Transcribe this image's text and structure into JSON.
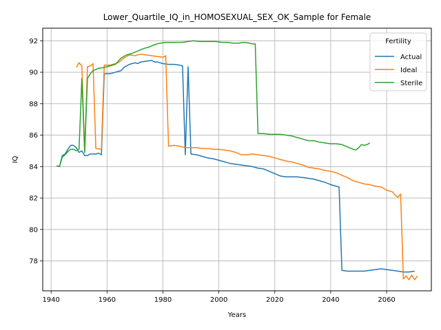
{
  "chart_data": {
    "type": "line",
    "title": "Lower_Quartile_IQ_in_HOMOSEXUAL_SEX_OK_Sample for Female",
    "xlabel": "Years",
    "ylabel": "IQ",
    "xlim": [
      1937,
      2076
    ],
    "ylim": [
      76.1,
      92.8
    ],
    "xticks": [
      1940,
      1960,
      1980,
      2000,
      2020,
      2040,
      2060
    ],
    "yticks": [
      78,
      80,
      82,
      84,
      86,
      88,
      90,
      92
    ],
    "grid": true,
    "legend": {
      "title": "Fertility",
      "placement": "top-right"
    },
    "series": [
      {
        "name": "Actual",
        "color": "#1f77b4",
        "points": [
          [
            1942,
            84.05
          ],
          [
            1943,
            84.0
          ],
          [
            1944,
            84.7
          ],
          [
            1945,
            84.8
          ],
          [
            1946,
            85.1
          ],
          [
            1947,
            85.35
          ],
          [
            1948,
            85.35
          ],
          [
            1949,
            85.2
          ],
          [
            1950,
            84.9
          ],
          [
            1951,
            85.0
          ],
          [
            1952,
            84.7
          ],
          [
            1953,
            84.7
          ],
          [
            1954,
            84.8
          ],
          [
            1956,
            84.8
          ],
          [
            1957,
            84.85
          ],
          [
            1958,
            84.75
          ],
          [
            1959,
            89.9
          ],
          [
            1961,
            89.9
          ],
          [
            1962,
            89.95
          ],
          [
            1964,
            90.05
          ],
          [
            1965,
            90.1
          ],
          [
            1966,
            90.3
          ],
          [
            1968,
            90.5
          ],
          [
            1970,
            90.6
          ],
          [
            1971,
            90.55
          ],
          [
            1972,
            90.65
          ],
          [
            1974,
            90.7
          ],
          [
            1976,
            90.75
          ],
          [
            1977,
            90.65
          ],
          [
            1978,
            90.65
          ],
          [
            1980,
            90.55
          ],
          [
            1982,
            90.5
          ],
          [
            1984,
            90.5
          ],
          [
            1986,
            90.45
          ],
          [
            1987,
            90.4
          ],
          [
            1988,
            84.75
          ],
          [
            1989,
            90.35
          ],
          [
            1990,
            84.8
          ],
          [
            1992,
            84.75
          ],
          [
            1994,
            84.65
          ],
          [
            1996,
            84.55
          ],
          [
            1998,
            84.5
          ],
          [
            2000,
            84.4
          ],
          [
            2002,
            84.3
          ],
          [
            2004,
            84.2
          ],
          [
            2006,
            84.15
          ],
          [
            2008,
            84.1
          ],
          [
            2010,
            84.05
          ],
          [
            2012,
            84.0
          ],
          [
            2014,
            83.9
          ],
          [
            2016,
            83.85
          ],
          [
            2018,
            83.7
          ],
          [
            2020,
            83.55
          ],
          [
            2022,
            83.4
          ],
          [
            2024,
            83.35
          ],
          [
            2026,
            83.35
          ],
          [
            2028,
            83.35
          ],
          [
            2030,
            83.3
          ],
          [
            2032,
            83.25
          ],
          [
            2034,
            83.2
          ],
          [
            2036,
            83.1
          ],
          [
            2038,
            83.0
          ],
          [
            2040,
            82.85
          ],
          [
            2042,
            82.75
          ],
          [
            2043,
            82.7
          ],
          [
            2044,
            77.4
          ],
          [
            2046,
            77.35
          ],
          [
            2048,
            77.35
          ],
          [
            2050,
            77.35
          ],
          [
            2052,
            77.35
          ],
          [
            2054,
            77.4
          ],
          [
            2056,
            77.45
          ],
          [
            2058,
            77.5
          ],
          [
            2060,
            77.45
          ],
          [
            2062,
            77.4
          ],
          [
            2064,
            77.35
          ],
          [
            2066,
            77.3
          ],
          [
            2068,
            77.3
          ],
          [
            2070,
            77.35
          ]
        ]
      },
      {
        "name": "Ideal",
        "color": "#ff7f0e",
        "points": [
          [
            1949,
            90.3
          ],
          [
            1950,
            90.6
          ],
          [
            1951,
            90.4
          ],
          [
            1952,
            84.9
          ],
          [
            1953,
            90.35
          ],
          [
            1954,
            90.4
          ],
          [
            1955,
            90.55
          ],
          [
            1956,
            85.15
          ],
          [
            1958,
            85.1
          ],
          [
            1959,
            90.45
          ],
          [
            1961,
            90.45
          ],
          [
            1962,
            90.5
          ],
          [
            1964,
            90.6
          ],
          [
            1966,
            90.9
          ],
          [
            1968,
            91.1
          ],
          [
            1970,
            91.05
          ],
          [
            1972,
            91.15
          ],
          [
            1974,
            91.1
          ],
          [
            1976,
            91.05
          ],
          [
            1978,
            91.0
          ],
          [
            1980,
            90.95
          ],
          [
            1981,
            91.05
          ],
          [
            1982,
            85.3
          ],
          [
            1984,
            85.35
          ],
          [
            1986,
            85.3
          ],
          [
            1988,
            85.2
          ],
          [
            1990,
            85.2
          ],
          [
            1992,
            85.2
          ],
          [
            1994,
            85.15
          ],
          [
            1996,
            85.15
          ],
          [
            1998,
            85.1
          ],
          [
            2000,
            85.1
          ],
          [
            2002,
            85.05
          ],
          [
            2004,
            85.0
          ],
          [
            2006,
            84.9
          ],
          [
            2008,
            84.75
          ],
          [
            2010,
            84.75
          ],
          [
            2012,
            84.8
          ],
          [
            2014,
            84.75
          ],
          [
            2016,
            84.7
          ],
          [
            2018,
            84.65
          ],
          [
            2020,
            84.55
          ],
          [
            2022,
            84.45
          ],
          [
            2024,
            84.35
          ],
          [
            2026,
            84.3
          ],
          [
            2028,
            84.2
          ],
          [
            2030,
            84.1
          ],
          [
            2032,
            83.95
          ],
          [
            2034,
            83.9
          ],
          [
            2036,
            83.85
          ],
          [
            2038,
            83.75
          ],
          [
            2040,
            83.7
          ],
          [
            2042,
            83.6
          ],
          [
            2044,
            83.45
          ],
          [
            2046,
            83.3
          ],
          [
            2048,
            83.1
          ],
          [
            2050,
            83.0
          ],
          [
            2052,
            82.9
          ],
          [
            2054,
            82.85
          ],
          [
            2056,
            82.75
          ],
          [
            2058,
            82.7
          ],
          [
            2060,
            82.5
          ],
          [
            2062,
            82.4
          ],
          [
            2063,
            82.2
          ],
          [
            2064,
            82.05
          ],
          [
            2065,
            82.25
          ],
          [
            2066,
            76.85
          ],
          [
            2067,
            77.05
          ],
          [
            2068,
            76.8
          ],
          [
            2069,
            77.1
          ],
          [
            2070,
            76.8
          ],
          [
            2071,
            77.05
          ]
        ]
      },
      {
        "name": "Sterile",
        "color": "#2ca02c",
        "points": [
          [
            1942,
            84.05
          ],
          [
            1943,
            84.0
          ],
          [
            1944,
            84.6
          ],
          [
            1945,
            84.75
          ],
          [
            1946,
            84.95
          ],
          [
            1947,
            85.1
          ],
          [
            1948,
            85.1
          ],
          [
            1949,
            85.0
          ],
          [
            1950,
            85.1
          ],
          [
            1951,
            89.6
          ],
          [
            1952,
            84.9
          ],
          [
            1953,
            89.6
          ],
          [
            1954,
            89.9
          ],
          [
            1955,
            90.1
          ],
          [
            1957,
            90.25
          ],
          [
            1959,
            90.3
          ],
          [
            1961,
            90.4
          ],
          [
            1963,
            90.5
          ],
          [
            1965,
            90.9
          ],
          [
            1967,
            91.1
          ],
          [
            1969,
            91.2
          ],
          [
            1971,
            91.35
          ],
          [
            1973,
            91.5
          ],
          [
            1975,
            91.6
          ],
          [
            1977,
            91.75
          ],
          [
            1979,
            91.85
          ],
          [
            1981,
            91.9
          ],
          [
            1983,
            91.9
          ],
          [
            1985,
            91.9
          ],
          [
            1987,
            91.9
          ],
          [
            1989,
            91.95
          ],
          [
            1991,
            92.0
          ],
          [
            1993,
            91.95
          ],
          [
            1995,
            91.95
          ],
          [
            1997,
            91.95
          ],
          [
            1999,
            91.95
          ],
          [
            2001,
            91.9
          ],
          [
            2003,
            91.9
          ],
          [
            2005,
            91.85
          ],
          [
            2007,
            91.85
          ],
          [
            2009,
            91.9
          ],
          [
            2011,
            91.85
          ],
          [
            2012,
            91.8
          ],
          [
            2013,
            91.8
          ],
          [
            2014,
            86.1
          ],
          [
            2016,
            86.1
          ],
          [
            2018,
            86.05
          ],
          [
            2020,
            86.05
          ],
          [
            2022,
            86.05
          ],
          [
            2024,
            86.0
          ],
          [
            2026,
            85.95
          ],
          [
            2028,
            85.85
          ],
          [
            2030,
            85.75
          ],
          [
            2032,
            85.65
          ],
          [
            2034,
            85.65
          ],
          [
            2036,
            85.55
          ],
          [
            2038,
            85.5
          ],
          [
            2040,
            85.45
          ],
          [
            2042,
            85.45
          ],
          [
            2044,
            85.4
          ],
          [
            2046,
            85.25
          ],
          [
            2048,
            85.1
          ],
          [
            2049,
            85.05
          ],
          [
            2050,
            85.2
          ],
          [
            2051,
            85.4
          ],
          [
            2052,
            85.35
          ],
          [
            2053,
            85.4
          ],
          [
            2054,
            85.5
          ]
        ]
      }
    ]
  }
}
